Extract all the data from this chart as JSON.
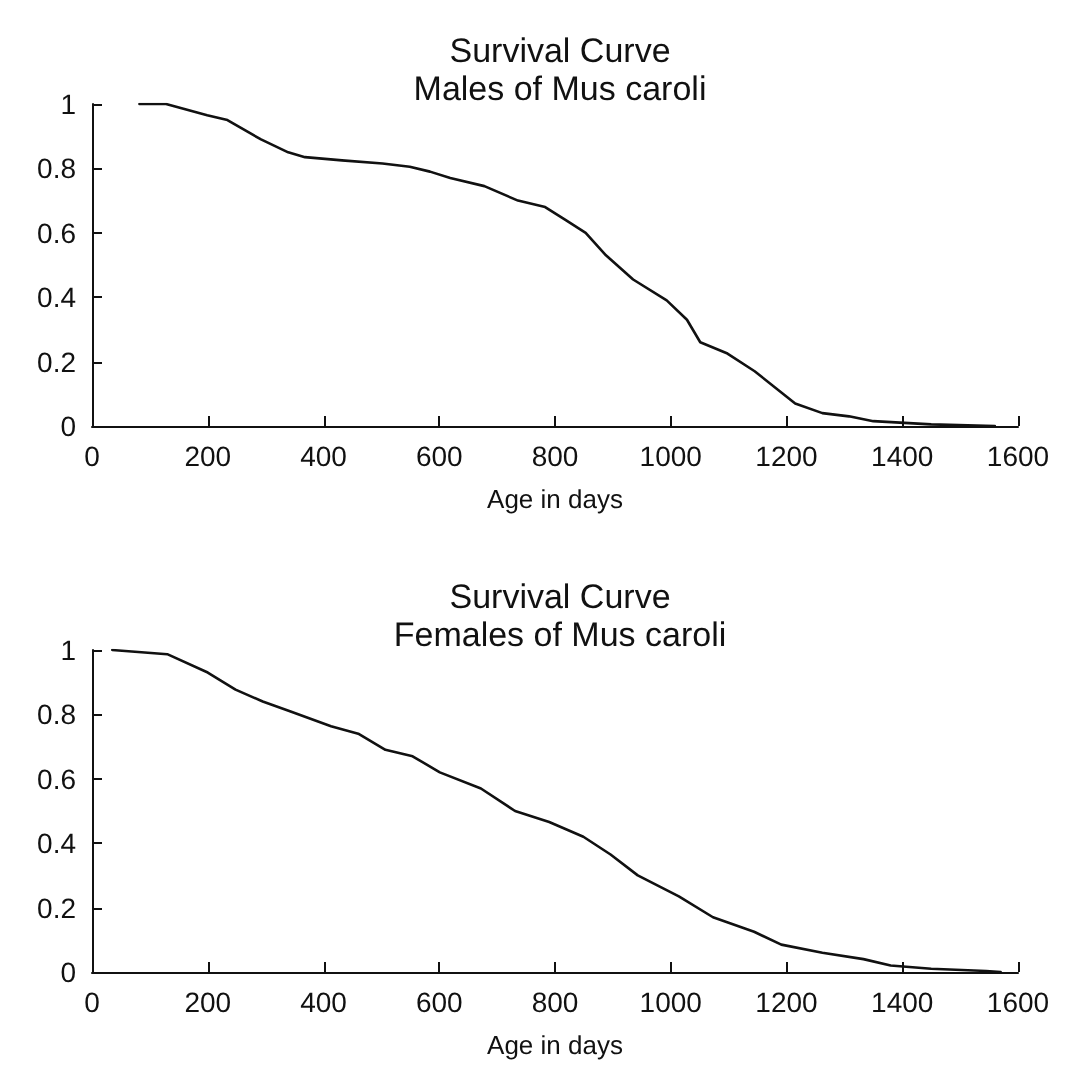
{
  "chart_data": [
    {
      "type": "line",
      "title": "Survival Curve",
      "subtitle": "Males of Mus caroli",
      "xlabel": "Age in days",
      "xlim": [
        0,
        1600
      ],
      "xticks": [
        0,
        200,
        400,
        600,
        800,
        1000,
        1200,
        1400,
        1600
      ],
      "ylim": [
        0,
        1
      ],
      "yticks": [
        0,
        0.2,
        0.4,
        0.6,
        0.8,
        1
      ],
      "grid": false,
      "marker": "none",
      "line_style": "solid",
      "series": [
        {
          "color": "#111111",
          "x": [
            82,
            128,
            158,
            199,
            234,
            292,
            339,
            368,
            432,
            502,
            549,
            584,
            619,
            678,
            736,
            783,
            818,
            853,
            888,
            935,
            993,
            1028,
            1051,
            1098,
            1145,
            1215,
            1262,
            1308,
            1350,
            1450,
            1560
          ],
          "values": [
            1,
            1,
            0.985,
            0.965,
            0.95,
            0.89,
            0.85,
            0.835,
            0.825,
            0.815,
            0.805,
            0.79,
            0.77,
            0.745,
            0.7,
            0.68,
            0.64,
            0.6,
            0.53,
            0.455,
            0.39,
            0.33,
            0.26,
            0.225,
            0.17,
            0.07,
            0.04,
            0.03,
            0.015,
            0.005,
            0
          ]
        }
      ]
    },
    {
      "type": "line",
      "title": "Survival Curve",
      "subtitle": "Females of Mus caroli",
      "xlabel": "Age in days",
      "xlim": [
        0,
        1600
      ],
      "xticks": [
        0,
        200,
        400,
        600,
        800,
        1000,
        1200,
        1400,
        1600
      ],
      "ylim": [
        0,
        1
      ],
      "yticks": [
        0,
        0.2,
        0.4,
        0.6,
        0.8,
        1
      ],
      "grid": false,
      "marker": "none",
      "line_style": "solid",
      "series": [
        {
          "color": "#111111",
          "x": [
            35,
            130,
            200,
            248,
            295,
            342,
            413,
            460,
            507,
            554,
            601,
            672,
            731,
            790,
            849,
            896,
            943,
            1014,
            1073,
            1144,
            1191,
            1262,
            1333,
            1380,
            1450,
            1545,
            1570
          ],
          "values": [
            1,
            0.987,
            0.93,
            0.877,
            0.84,
            0.81,
            0.763,
            0.74,
            0.69,
            0.67,
            0.62,
            0.57,
            0.5,
            0.466,
            0.42,
            0.365,
            0.3,
            0.235,
            0.17,
            0.125,
            0.085,
            0.06,
            0.04,
            0.02,
            0.01,
            0.003,
            0
          ]
        }
      ]
    }
  ]
}
